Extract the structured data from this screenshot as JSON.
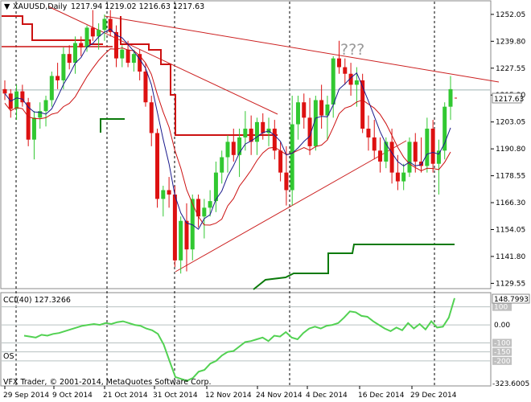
{
  "header": {
    "symbol_label": "XAUUSD,Daily",
    "ohlc": "1217.94 1219.02 1216.63 1217.63"
  },
  "annotation": "???",
  "price_box": "1217.63",
  "indicator": {
    "cci_label": "CCI(40) 127.3266",
    "cci_box": "148.7993",
    "os_label": "OS",
    "levels": [
      "100",
      "0.00",
      "-100",
      "-150",
      "-200"
    ],
    "min_label": "-323.6005"
  },
  "copyright": "VFX Trader, © 2001-2014, MetaQuotes Software Corp.",
  "colors": {
    "bull": "#31c831",
    "bear": "#dd1111",
    "ma_fast": "#1a1a8c",
    "ma_slow": "#cc1111",
    "trend": "#cc2020",
    "support": "#0a7a0a",
    "cci": "#52d152"
  },
  "chart_data": {
    "type": "candlestick",
    "yaxis_ticks": [
      "1252.05",
      "1239.80",
      "1227.55",
      "1215.30",
      "1203.05",
      "1190.80",
      "1178.55",
      "1166.30",
      "1154.05",
      "1141.80",
      "1129.55"
    ],
    "ylim": [
      1127.5,
      1257.5
    ],
    "xaxis_ticks": [
      "29 Sep 2014",
      "9 Oct 2014",
      "21 Oct 2014",
      "31 Oct 2014",
      "12 Nov 2014",
      "24 Nov 2014",
      "4 Dec 2014",
      "16 Dec 2014",
      "29 Dec 2014"
    ],
    "candles": [
      [
        1218,
        1222,
        1213,
        1216
      ],
      [
        1216,
        1218,
        1205,
        1209
      ],
      [
        1209,
        1220,
        1204,
        1217
      ],
      [
        1217,
        1220,
        1210,
        1212
      ],
      [
        1212,
        1214,
        1192,
        1195
      ],
      [
        1195,
        1208,
        1186,
        1205
      ],
      [
        1205,
        1212,
        1200,
        1208
      ],
      [
        1208,
        1215,
        1201,
        1213
      ],
      [
        1213,
        1226,
        1210,
        1224
      ],
      [
        1224,
        1230,
        1218,
        1222
      ],
      [
        1222,
        1237,
        1218,
        1234
      ],
      [
        1234,
        1238,
        1227,
        1230
      ],
      [
        1230,
        1242,
        1225,
        1239
      ],
      [
        1239,
        1242,
        1233,
        1237
      ],
      [
        1237,
        1247,
        1235,
        1246
      ],
      [
        1246,
        1254,
        1240,
        1242
      ],
      [
        1242,
        1248,
        1236,
        1245
      ],
      [
        1245,
        1252,
        1240,
        1250
      ],
      [
        1250,
        1254,
        1242,
        1244
      ],
      [
        1244,
        1247,
        1228,
        1232
      ],
      [
        1232,
        1238,
        1228,
        1236
      ],
      [
        1236,
        1240,
        1228,
        1230
      ],
      [
        1230,
        1236,
        1226,
        1234
      ],
      [
        1234,
        1236,
        1222,
        1226
      ],
      [
        1226,
        1230,
        1210,
        1212
      ],
      [
        1212,
        1215,
        1192,
        1198
      ],
      [
        1198,
        1200,
        1164,
        1168
      ],
      [
        1168,
        1174,
        1160,
        1172
      ],
      [
        1172,
        1178,
        1164,
        1170
      ],
      [
        1170,
        1174,
        1137,
        1140
      ],
      [
        1140,
        1160,
        1134,
        1158
      ],
      [
        1158,
        1166,
        1135,
        1145
      ],
      [
        1145,
        1170,
        1140,
        1168
      ],
      [
        1168,
        1170,
        1155,
        1160
      ],
      [
        1160,
        1168,
        1150,
        1164
      ],
      [
        1164,
        1172,
        1160,
        1167
      ],
      [
        1167,
        1185,
        1162,
        1180
      ],
      [
        1180,
        1190,
        1175,
        1187
      ],
      [
        1187,
        1197,
        1180,
        1194
      ],
      [
        1194,
        1200,
        1185,
        1188
      ],
      [
        1188,
        1200,
        1178,
        1196
      ],
      [
        1196,
        1208,
        1190,
        1200
      ],
      [
        1200,
        1206,
        1188,
        1194
      ],
      [
        1194,
        1205,
        1188,
        1203
      ],
      [
        1203,
        1207,
        1195,
        1198
      ],
      [
        1198,
        1205,
        1192,
        1200
      ],
      [
        1200,
        1204,
        1186,
        1190
      ],
      [
        1190,
        1194,
        1176,
        1180
      ],
      [
        1180,
        1192,
        1165,
        1172
      ],
      [
        1172,
        1215,
        1165,
        1202
      ],
      [
        1202,
        1215,
        1195,
        1212
      ],
      [
        1212,
        1216,
        1200,
        1205
      ],
      [
        1205,
        1214,
        1188,
        1192
      ],
      [
        1192,
        1215,
        1190,
        1213
      ],
      [
        1213,
        1220,
        1200,
        1206
      ],
      [
        1206,
        1215,
        1195,
        1211
      ],
      [
        1211,
        1233,
        1205,
        1232
      ],
      [
        1232,
        1240,
        1225,
        1228
      ],
      [
        1228,
        1232,
        1220,
        1225
      ],
      [
        1225,
        1230,
        1215,
        1220
      ],
      [
        1220,
        1228,
        1210,
        1222
      ],
      [
        1222,
        1225,
        1198,
        1200
      ],
      [
        1200,
        1206,
        1190,
        1196
      ],
      [
        1196,
        1204,
        1186,
        1190
      ],
      [
        1190,
        1196,
        1180,
        1185
      ],
      [
        1185,
        1196,
        1182,
        1194
      ],
      [
        1194,
        1200,
        1175,
        1180
      ],
      [
        1180,
        1188,
        1172,
        1176
      ],
      [
        1176,
        1184,
        1172,
        1180
      ],
      [
        1180,
        1196,
        1178,
        1194
      ],
      [
        1194,
        1198,
        1180,
        1185
      ],
      [
        1185,
        1196,
        1180,
        1183
      ],
      [
        1183,
        1205,
        1180,
        1200
      ],
      [
        1200,
        1204,
        1180,
        1184
      ],
      [
        1184,
        1195,
        1170,
        1190
      ],
      [
        1190,
        1212,
        1186,
        1210
      ],
      [
        1210,
        1224,
        1204,
        1218
      ]
    ]
  }
}
